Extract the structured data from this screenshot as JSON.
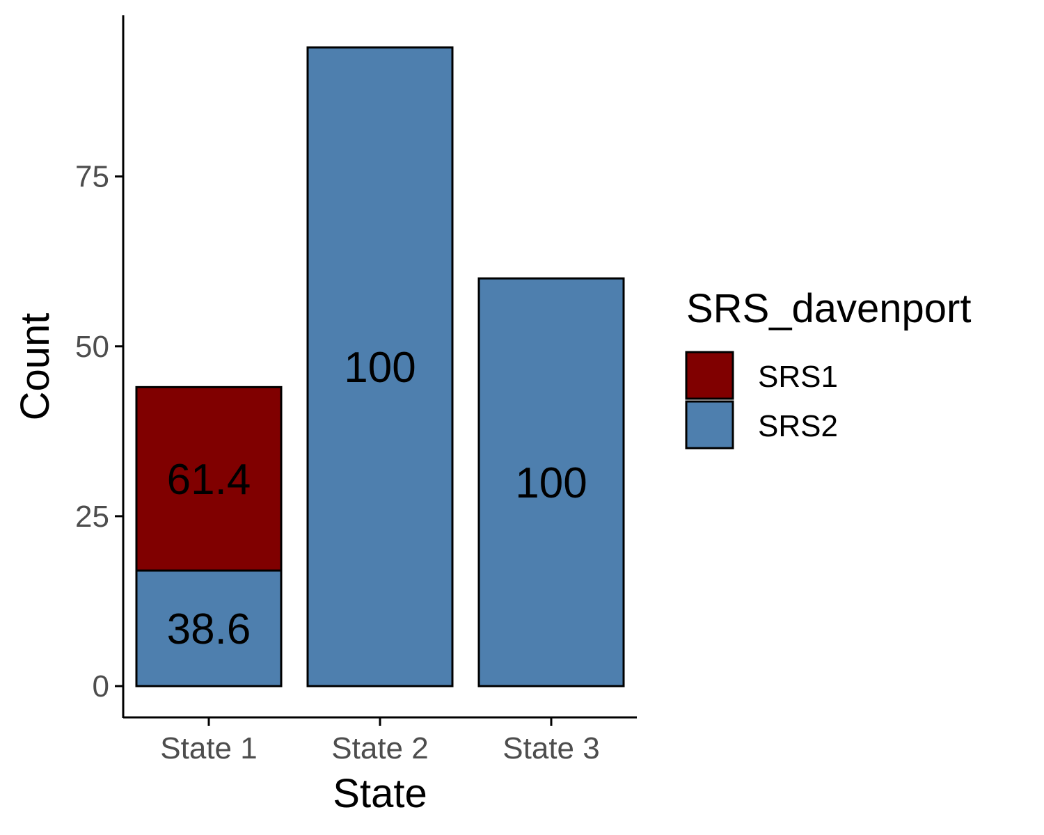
{
  "chart_data": {
    "type": "bar",
    "stacked": true,
    "xlabel": "State",
    "ylabel": "Count",
    "categories": [
      "State 1",
      "State 2",
      "State 3"
    ],
    "ylim": [
      0,
      94
    ],
    "yticks": [
      0,
      25,
      50,
      75
    ],
    "grid": false,
    "legend": {
      "title": "SRS_davenport",
      "position": "right"
    },
    "series": [
      {
        "name": "SRS2",
        "color": "#4e7fae",
        "values": [
          17,
          94,
          60
        ],
        "labels": [
          "38.6",
          "100",
          "100"
        ]
      },
      {
        "name": "SRS1",
        "color": "#800000",
        "values": [
          27,
          0,
          0
        ],
        "labels": [
          "61.4",
          "",
          ""
        ]
      }
    ]
  }
}
